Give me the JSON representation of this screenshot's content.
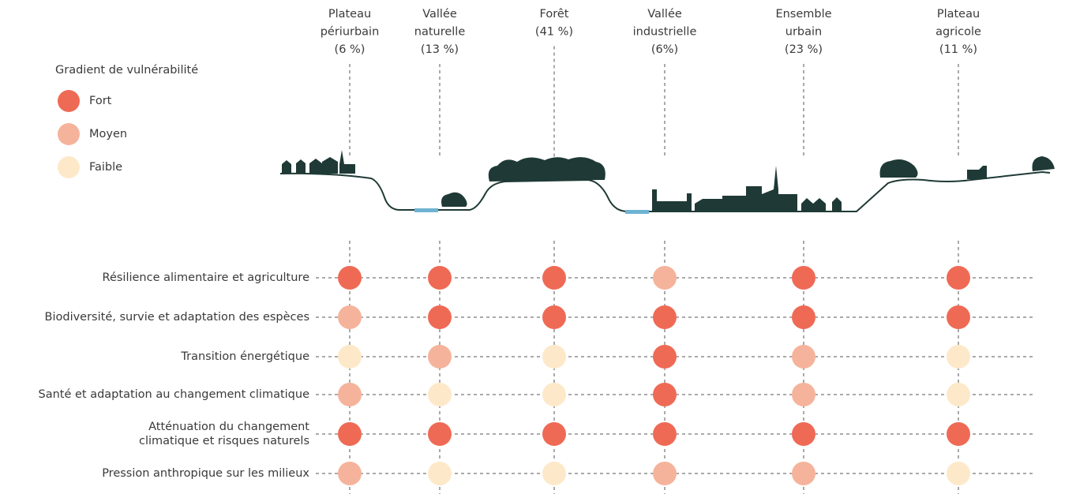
{
  "legend": {
    "title": "Gradient de vulnérabilité",
    "items": [
      {
        "label": "Fort",
        "color": "#ef6a55"
      },
      {
        "label": "Moyen",
        "color": "#f6b39b"
      },
      {
        "label": "Faible",
        "color": "#fde9c9"
      }
    ]
  },
  "columns": [
    {
      "label": [
        "Plateau",
        "périurbain",
        "(6 %)"
      ]
    },
    {
      "label": [
        "Vallée",
        "naturelle",
        "(13 %)"
      ]
    },
    {
      "label": [
        "Forêt",
        "(41 %)"
      ]
    },
    {
      "label": [
        "Vallée",
        "industrielle",
        "(6%)"
      ]
    },
    {
      "label": [
        "Ensemble",
        "urbain",
        "(23 %)"
      ]
    },
    {
      "label": [
        "Plateau",
        "agricole",
        "(11 %)"
      ]
    }
  ],
  "rows": [
    {
      "label": [
        "Résilience alimentaire et agriculture"
      ],
      "levels": [
        "Fort",
        "Fort",
        "Fort",
        "Moyen",
        "Fort",
        "Fort"
      ]
    },
    {
      "label": [
        "Biodiversité, survie et adaptation des espèces"
      ],
      "levels": [
        "Moyen",
        "Fort",
        "Fort",
        "Fort",
        "Fort",
        "Fort"
      ]
    },
    {
      "label": [
        "Transition énergétique"
      ],
      "levels": [
        "Faible",
        "Moyen",
        "Faible",
        "Fort",
        "Moyen",
        "Faible"
      ]
    },
    {
      "label": [
        "Santé et adaptation au changement climatique"
      ],
      "levels": [
        "Moyen",
        "Faible",
        "Faible",
        "Fort",
        "Moyen",
        "Faible"
      ]
    },
    {
      "label": [
        "Atténuation du changement",
        "climatique et risques naturels"
      ],
      "levels": [
        "Fort",
        "Fort",
        "Fort",
        "Fort",
        "Fort",
        "Fort"
      ]
    },
    {
      "label": [
        "Pression anthropique sur les milieux"
      ],
      "levels": [
        "Moyen",
        "Faible",
        "Faible",
        "Moyen",
        "Moyen",
        "Faible"
      ]
    }
  ]
}
